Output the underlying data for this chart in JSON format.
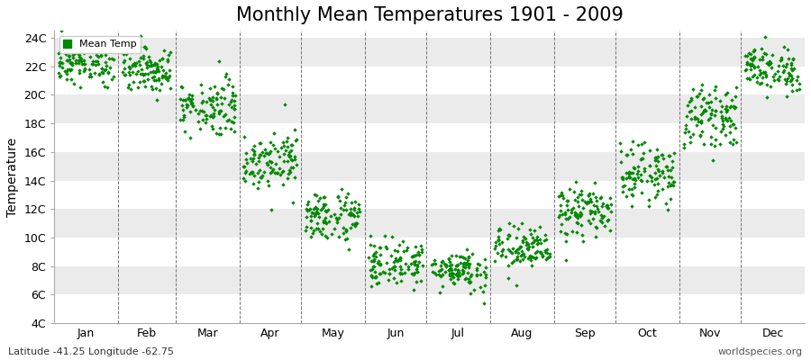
{
  "title": "Monthly Mean Temperatures 1901 - 2009",
  "ylabel": "Temperature",
  "xlabel": "",
  "lat_lon_label": "Latitude -41.25 Longitude -62.75",
  "website_label": "worldspecies.org",
  "legend_label": "Mean Temp",
  "ylim": [
    4,
    24.5
  ],
  "yticks": [
    4,
    6,
    8,
    10,
    12,
    14,
    16,
    18,
    20,
    22,
    24
  ],
  "ytick_labels": [
    "4C",
    "6C",
    "8C",
    "10C",
    "12C",
    "14C",
    "16C",
    "18C",
    "20C",
    "22C",
    "24C"
  ],
  "months": [
    "Jan",
    "Feb",
    "Mar",
    "Apr",
    "May",
    "Jun",
    "Jul",
    "Aug",
    "Sep",
    "Oct",
    "Nov",
    "Dec"
  ],
  "month_means": [
    22.2,
    21.8,
    19.2,
    15.5,
    11.5,
    8.2,
    7.8,
    9.2,
    11.8,
    14.5,
    18.5,
    21.8
  ],
  "month_stds": [
    0.7,
    0.8,
    1.0,
    1.0,
    0.9,
    0.8,
    0.7,
    0.8,
    0.9,
    1.0,
    1.0,
    0.8
  ],
  "n_years": 109,
  "dot_color": "#008800",
  "dot_size": 5,
  "background_color": "#FFFFFF",
  "band_colors": [
    "#FFFFFF",
    "#EBEBEB",
    "#FFFFFF",
    "#EBEBEB",
    "#FFFFFF",
    "#EBEBEB",
    "#FFFFFF",
    "#EBEBEB",
    "#FFFFFF",
    "#EBEBEB"
  ],
  "title_fontsize": 15,
  "axis_label_fontsize": 10,
  "tick_fontsize": 9,
  "annotation_fontsize": 8
}
